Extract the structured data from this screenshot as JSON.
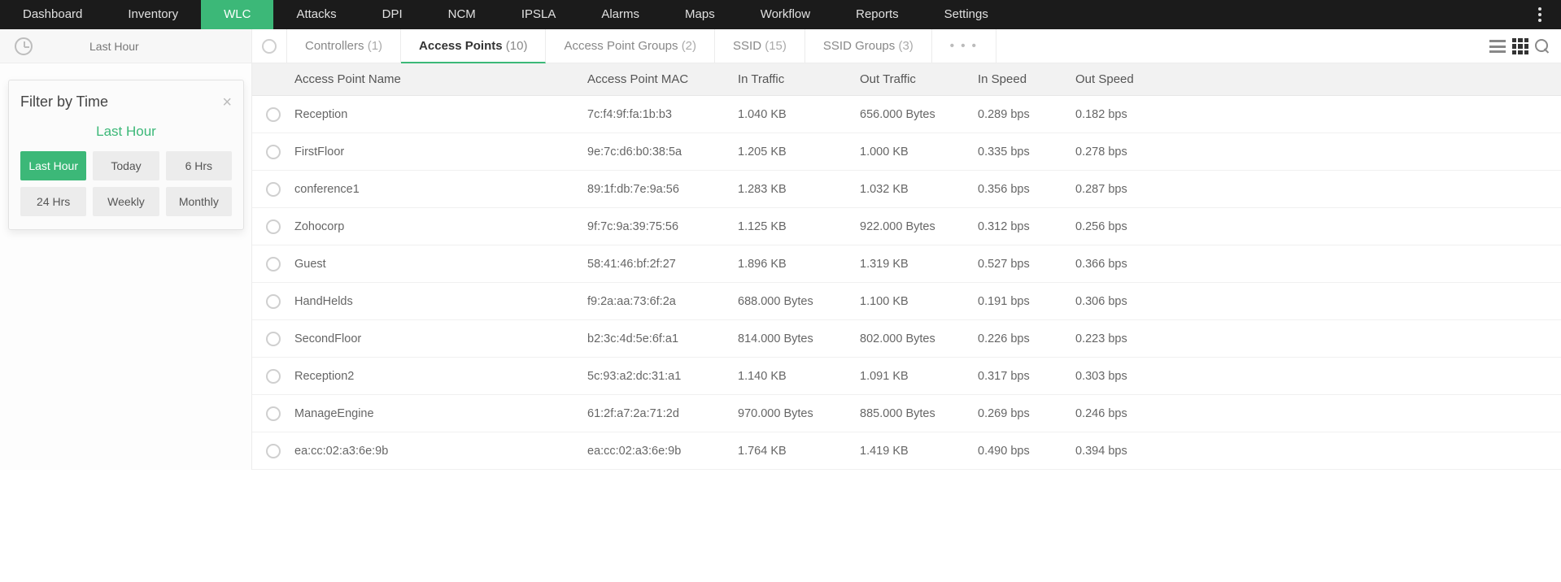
{
  "nav": {
    "items": [
      "Dashboard",
      "Inventory",
      "WLC",
      "Attacks",
      "DPI",
      "NCM",
      "IPSLA",
      "Alarms",
      "Maps",
      "Workflow",
      "Reports",
      "Settings"
    ],
    "active_index": 2
  },
  "time_header": {
    "label": "Last Hour"
  },
  "filter_panel": {
    "title": "Filter by Time",
    "current": "Last Hour",
    "options": [
      "Last Hour",
      "Today",
      "6 Hrs",
      "24 Hrs",
      "Weekly",
      "Monthly"
    ],
    "active_index": 0
  },
  "tabs": [
    {
      "label": "Controllers",
      "count": "(1)"
    },
    {
      "label": "Access Points",
      "count": "(10)"
    },
    {
      "label": "Access Point Groups",
      "count": "(2)"
    },
    {
      "label": "SSID",
      "count": "(15)"
    },
    {
      "label": "SSID Groups",
      "count": "(3)"
    }
  ],
  "tabs_active_index": 1,
  "tabs_more": "•  •  •",
  "columns": [
    "Access Point Name",
    "Access Point MAC",
    "In Traffic",
    "Out Traffic",
    "In Speed",
    "Out Speed"
  ],
  "rows": [
    {
      "name": "Reception",
      "mac": "7c:f4:9f:fa:1b:b3",
      "in": "1.040 KB",
      "out": "656.000 Bytes",
      "ins": "0.289 bps",
      "outs": "0.182 bps"
    },
    {
      "name": "FirstFloor",
      "mac": "9e:7c:d6:b0:38:5a",
      "in": "1.205 KB",
      "out": "1.000 KB",
      "ins": "0.335 bps",
      "outs": "0.278 bps"
    },
    {
      "name": "conference1",
      "mac": "89:1f:db:7e:9a:56",
      "in": "1.283 KB",
      "out": "1.032 KB",
      "ins": "0.356 bps",
      "outs": "0.287 bps"
    },
    {
      "name": "Zohocorp",
      "mac": "9f:7c:9a:39:75:56",
      "in": "1.125 KB",
      "out": "922.000 Bytes",
      "ins": "0.312 bps",
      "outs": "0.256 bps"
    },
    {
      "name": "Guest",
      "mac": "58:41:46:bf:2f:27",
      "in": "1.896 KB",
      "out": "1.319 KB",
      "ins": "0.527 bps",
      "outs": "0.366 bps"
    },
    {
      "name": "HandHelds",
      "mac": "f9:2a:aa:73:6f:2a",
      "in": "688.000 Bytes",
      "out": "1.100 KB",
      "ins": "0.191 bps",
      "outs": "0.306 bps"
    },
    {
      "name": "SecondFloor",
      "mac": "b2:3c:4d:5e:6f:a1",
      "in": "814.000 Bytes",
      "out": "802.000 Bytes",
      "ins": "0.226 bps",
      "outs": "0.223 bps"
    },
    {
      "name": "Reception2",
      "mac": "5c:93:a2:dc:31:a1",
      "in": "1.140 KB",
      "out": "1.091 KB",
      "ins": "0.317 bps",
      "outs": "0.303 bps"
    },
    {
      "name": "ManageEngine",
      "mac": "61:2f:a7:2a:71:2d",
      "in": "970.000 Bytes",
      "out": "885.000 Bytes",
      "ins": "0.269 bps",
      "outs": "0.246 bps"
    },
    {
      "name": "ea:cc:02:a3:6e:9b",
      "mac": "ea:cc:02:a3:6e:9b",
      "in": "1.764 KB",
      "out": "1.419 KB",
      "ins": "0.490 bps",
      "outs": "0.394 bps"
    }
  ],
  "colors": {
    "accent": "#3cb878",
    "nav_bg": "#1b1b1b",
    "header_bg": "#f2f2f2"
  }
}
